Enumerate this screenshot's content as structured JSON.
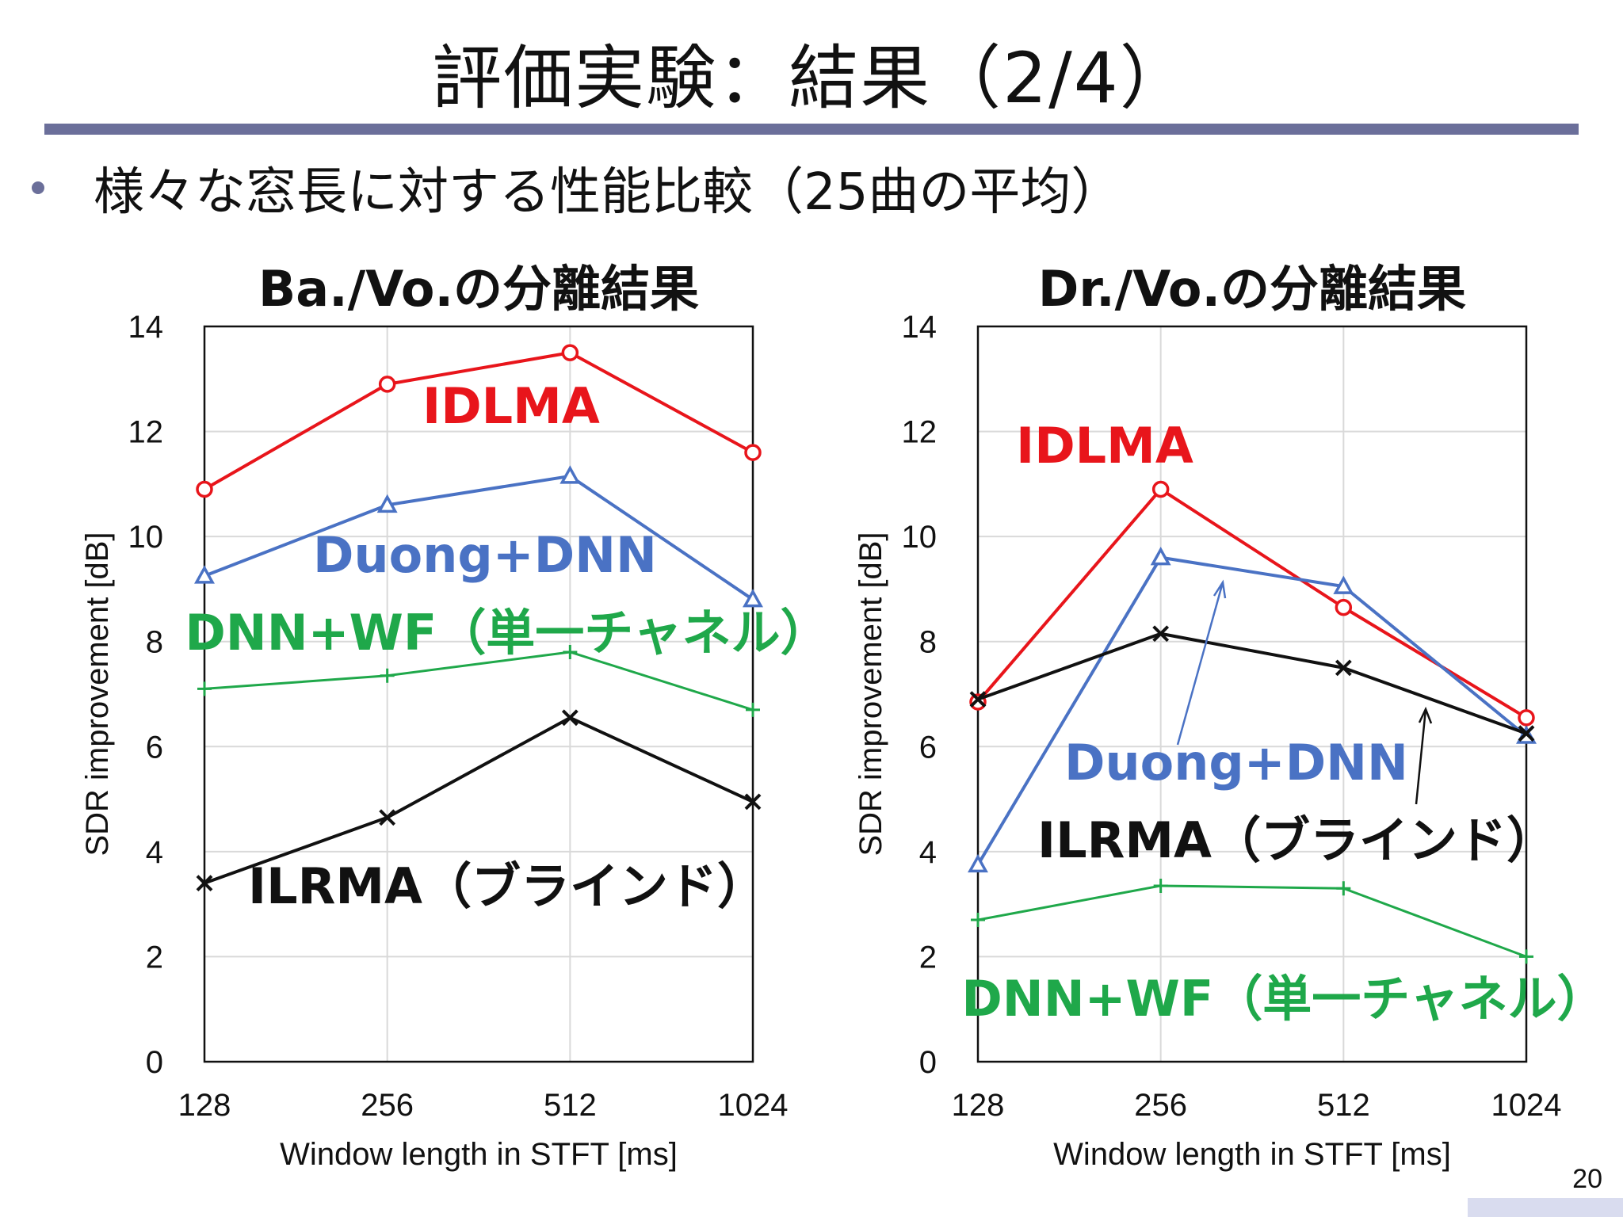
{
  "slide": {
    "title": "評価実験：結果（2/4）",
    "bullet": "様々な窓長に対する性能比較（25曲の平均）",
    "page_number": "20",
    "accent_color": "#6b6f9a"
  },
  "chart_data": [
    {
      "type": "line",
      "title": "Ba./Vo.の分離結果",
      "xlabel": "Window length in STFT [ms]",
      "ylabel": "SDR improvement [dB]",
      "categories": [
        "128",
        "256",
        "512",
        "1024"
      ],
      "ylim": [
        0,
        14
      ],
      "yticks": [
        "0",
        "2",
        "4",
        "6",
        "8",
        "10",
        "12",
        "14"
      ],
      "grid": true,
      "series": [
        {
          "name": "IDLMA",
          "color": "#e8151b",
          "marker": "circle",
          "values": [
            10.9,
            12.9,
            13.5,
            11.6
          ]
        },
        {
          "name": "Duong+DNN",
          "color": "#4a72c4",
          "marker": "triangle",
          "values": [
            9.25,
            10.6,
            11.15,
            8.8
          ]
        },
        {
          "name": "DNN+WF（単一チャネル）",
          "color": "#1fa84a",
          "marker": "plus",
          "values": [
            7.1,
            7.35,
            7.8,
            6.7
          ]
        },
        {
          "name": "ILRMA（ブラインド）",
          "color": "#111111",
          "marker": "x",
          "values": [
            3.4,
            4.65,
            6.55,
            4.95
          ]
        }
      ]
    },
    {
      "type": "line",
      "title": "Dr./Vo.の分離結果",
      "xlabel": "Window length in STFT [ms]",
      "ylabel": "SDR improvement [dB]",
      "categories": [
        "128",
        "256",
        "512",
        "1024"
      ],
      "ylim": [
        0,
        14
      ],
      "yticks": [
        "0",
        "2",
        "4",
        "6",
        "8",
        "10",
        "12",
        "14"
      ],
      "grid": true,
      "series": [
        {
          "name": "IDLMA",
          "color": "#e8151b",
          "marker": "circle",
          "values": [
            6.85,
            10.9,
            8.65,
            6.55
          ]
        },
        {
          "name": "Duong+DNN",
          "color": "#4a72c4",
          "marker": "triangle",
          "values": [
            3.75,
            9.6,
            9.05,
            6.2
          ]
        },
        {
          "name": "ILRMA（ブラインド）",
          "color": "#111111",
          "marker": "x",
          "values": [
            6.9,
            8.15,
            7.5,
            6.25
          ]
        },
        {
          "name": "DNN+WF（単一チャネル）",
          "color": "#1fa84a",
          "marker": "plus",
          "values": [
            2.7,
            3.35,
            3.3,
            2.0
          ]
        }
      ]
    }
  ]
}
